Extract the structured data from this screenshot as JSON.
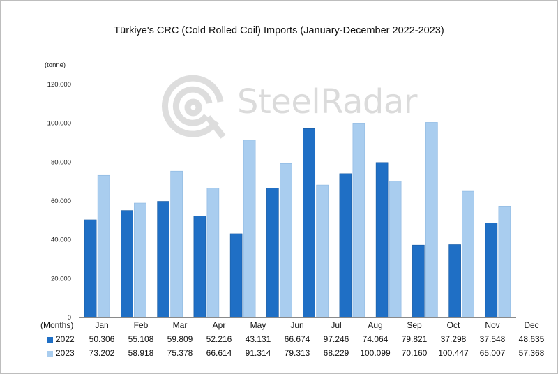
{
  "colors": {
    "series_2022": "#1f6fc5",
    "series_2023": "#a9cdef",
    "axis": "#8a8a8a",
    "grid": "#ffffff"
  },
  "watermark": {
    "text": "SteelRadar",
    "icon": "steelradar-logo-icon"
  },
  "chart_data": {
    "type": "bar",
    "title": "Türkiye's CRC (Cold Rolled Coil) Imports (January-December  2022-2023)",
    "ylabel": "(tonne)",
    "xlabel": "(Months)",
    "ylim": [
      0,
      120
    ],
    "yticks": [
      "0",
      "20.000",
      "40.000",
      "60.000",
      "80.000",
      "100.000",
      "120.000"
    ],
    "ytick_values": [
      0,
      20,
      40,
      60,
      80,
      100,
      120
    ],
    "grid": false,
    "legend": "table-rows",
    "categories": [
      "Jan",
      "Feb",
      "Mar",
      "Apr",
      "May",
      "Jun",
      "Jul",
      "Aug",
      "Sep",
      "Oct",
      "Nov",
      "Dec"
    ],
    "series": [
      {
        "name": "2022",
        "values": [
          50.306,
          55.108,
          59.809,
          52.216,
          43.131,
          66.674,
          97.246,
          74.064,
          79.821,
          37.298,
          37.548,
          48.635
        ],
        "labels": [
          "50.306",
          "55.108",
          "59.809",
          "52.216",
          "43.131",
          "66.674",
          "97.246",
          "74.064",
          "79.821",
          "37.298",
          "37.548",
          "48.635"
        ]
      },
      {
        "name": "2023",
        "values": [
          73.202,
          58.918,
          75.378,
          66.614,
          91.314,
          79.313,
          68.229,
          100.099,
          70.16,
          100.447,
          65.007,
          57.368
        ],
        "labels": [
          "73.202",
          "58.918",
          "75.378",
          "66.614",
          "91.314",
          "79.313",
          "68.229",
          "100.099",
          "70.160",
          "100.447",
          "65.007",
          "57.368"
        ]
      }
    ]
  }
}
